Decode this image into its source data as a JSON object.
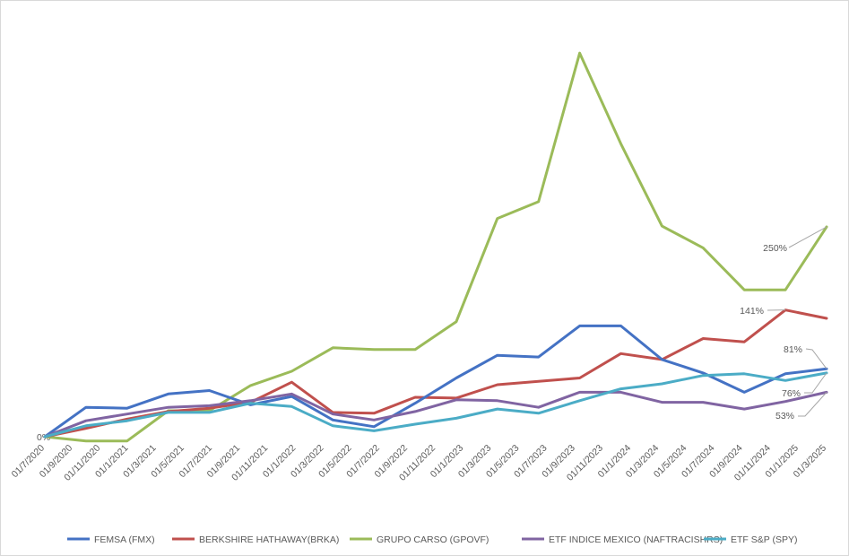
{
  "chart_data": {
    "type": "line",
    "title": "",
    "xlabel": "",
    "ylabel": "",
    "ylim": [
      -25,
      475
    ],
    "grid": false,
    "legend_position": "bottom",
    "y_tick_labels": [
      "0%"
    ],
    "x_tick_labels": [
      "01/7/2020",
      "01/9/2020",
      "01/11/2020",
      "01/1/2021",
      "01/3/2021",
      "01/5/2021",
      "01/7/2021",
      "01/9/2021",
      "01/11/2021",
      "01/1/2022",
      "01/3/2022",
      "01/5/2022",
      "01/7/2022",
      "01/9/2022",
      "01/11/2022",
      "01/1/2023",
      "01/3/2023",
      "01/5/2023",
      "01/7/2023",
      "01/9/2023",
      "01/11/2023",
      "01/1/2024",
      "01/3/2024",
      "01/5/2024",
      "01/7/2024",
      "01/9/2024",
      "01/11/2024",
      "01/1/2025",
      "01/3/2025"
    ],
    "point_count": 20,
    "series": [
      {
        "name": "FEMSA (FMX)",
        "color": "#4472C4",
        "values": [
          0,
          35,
          34,
          51,
          55,
          38,
          48,
          20,
          12,
          40,
          70,
          97,
          95,
          132,
          132,
          92,
          76,
          53,
          75,
          81
        ],
        "end_label": "81%"
      },
      {
        "name": "BERKSHIRE HATHAWAY(BRKA)",
        "color": "#C0504D",
        "values": [
          0,
          10,
          21,
          30,
          34,
          41,
          65,
          29,
          28,
          47,
          46,
          62,
          66,
          70,
          99,
          92,
          117,
          113,
          151,
          141
        ],
        "end_label": "141%"
      },
      {
        "name": "GRUPO CARSO (GPOVF)",
        "color": "#9BBB59",
        "values": [
          0,
          -5,
          -5,
          31,
          31,
          61,
          78,
          106,
          104,
          104,
          137,
          260,
          280,
          457,
          349,
          251,
          225,
          175,
          175,
          250
        ],
        "end_label": "250%"
      },
      {
        "name": "ETF INDICE MEXICO (NAFTRACISHRS)",
        "color": "#8064A2",
        "values": [
          0,
          19,
          27,
          35,
          37,
          43,
          51,
          27,
          20,
          30,
          44,
          43,
          35,
          53,
          53,
          41,
          41,
          33,
          42,
          53
        ],
        "end_label": "53%"
      },
      {
        "name": "ETF S&P (SPY)",
        "color": "#4BACC6",
        "values": [
          0,
          13,
          19,
          29,
          29,
          40,
          36,
          13,
          7,
          15,
          22,
          33,
          28,
          43,
          57,
          63,
          73,
          75,
          67,
          76
        ],
        "end_label": "76%"
      }
    ]
  }
}
